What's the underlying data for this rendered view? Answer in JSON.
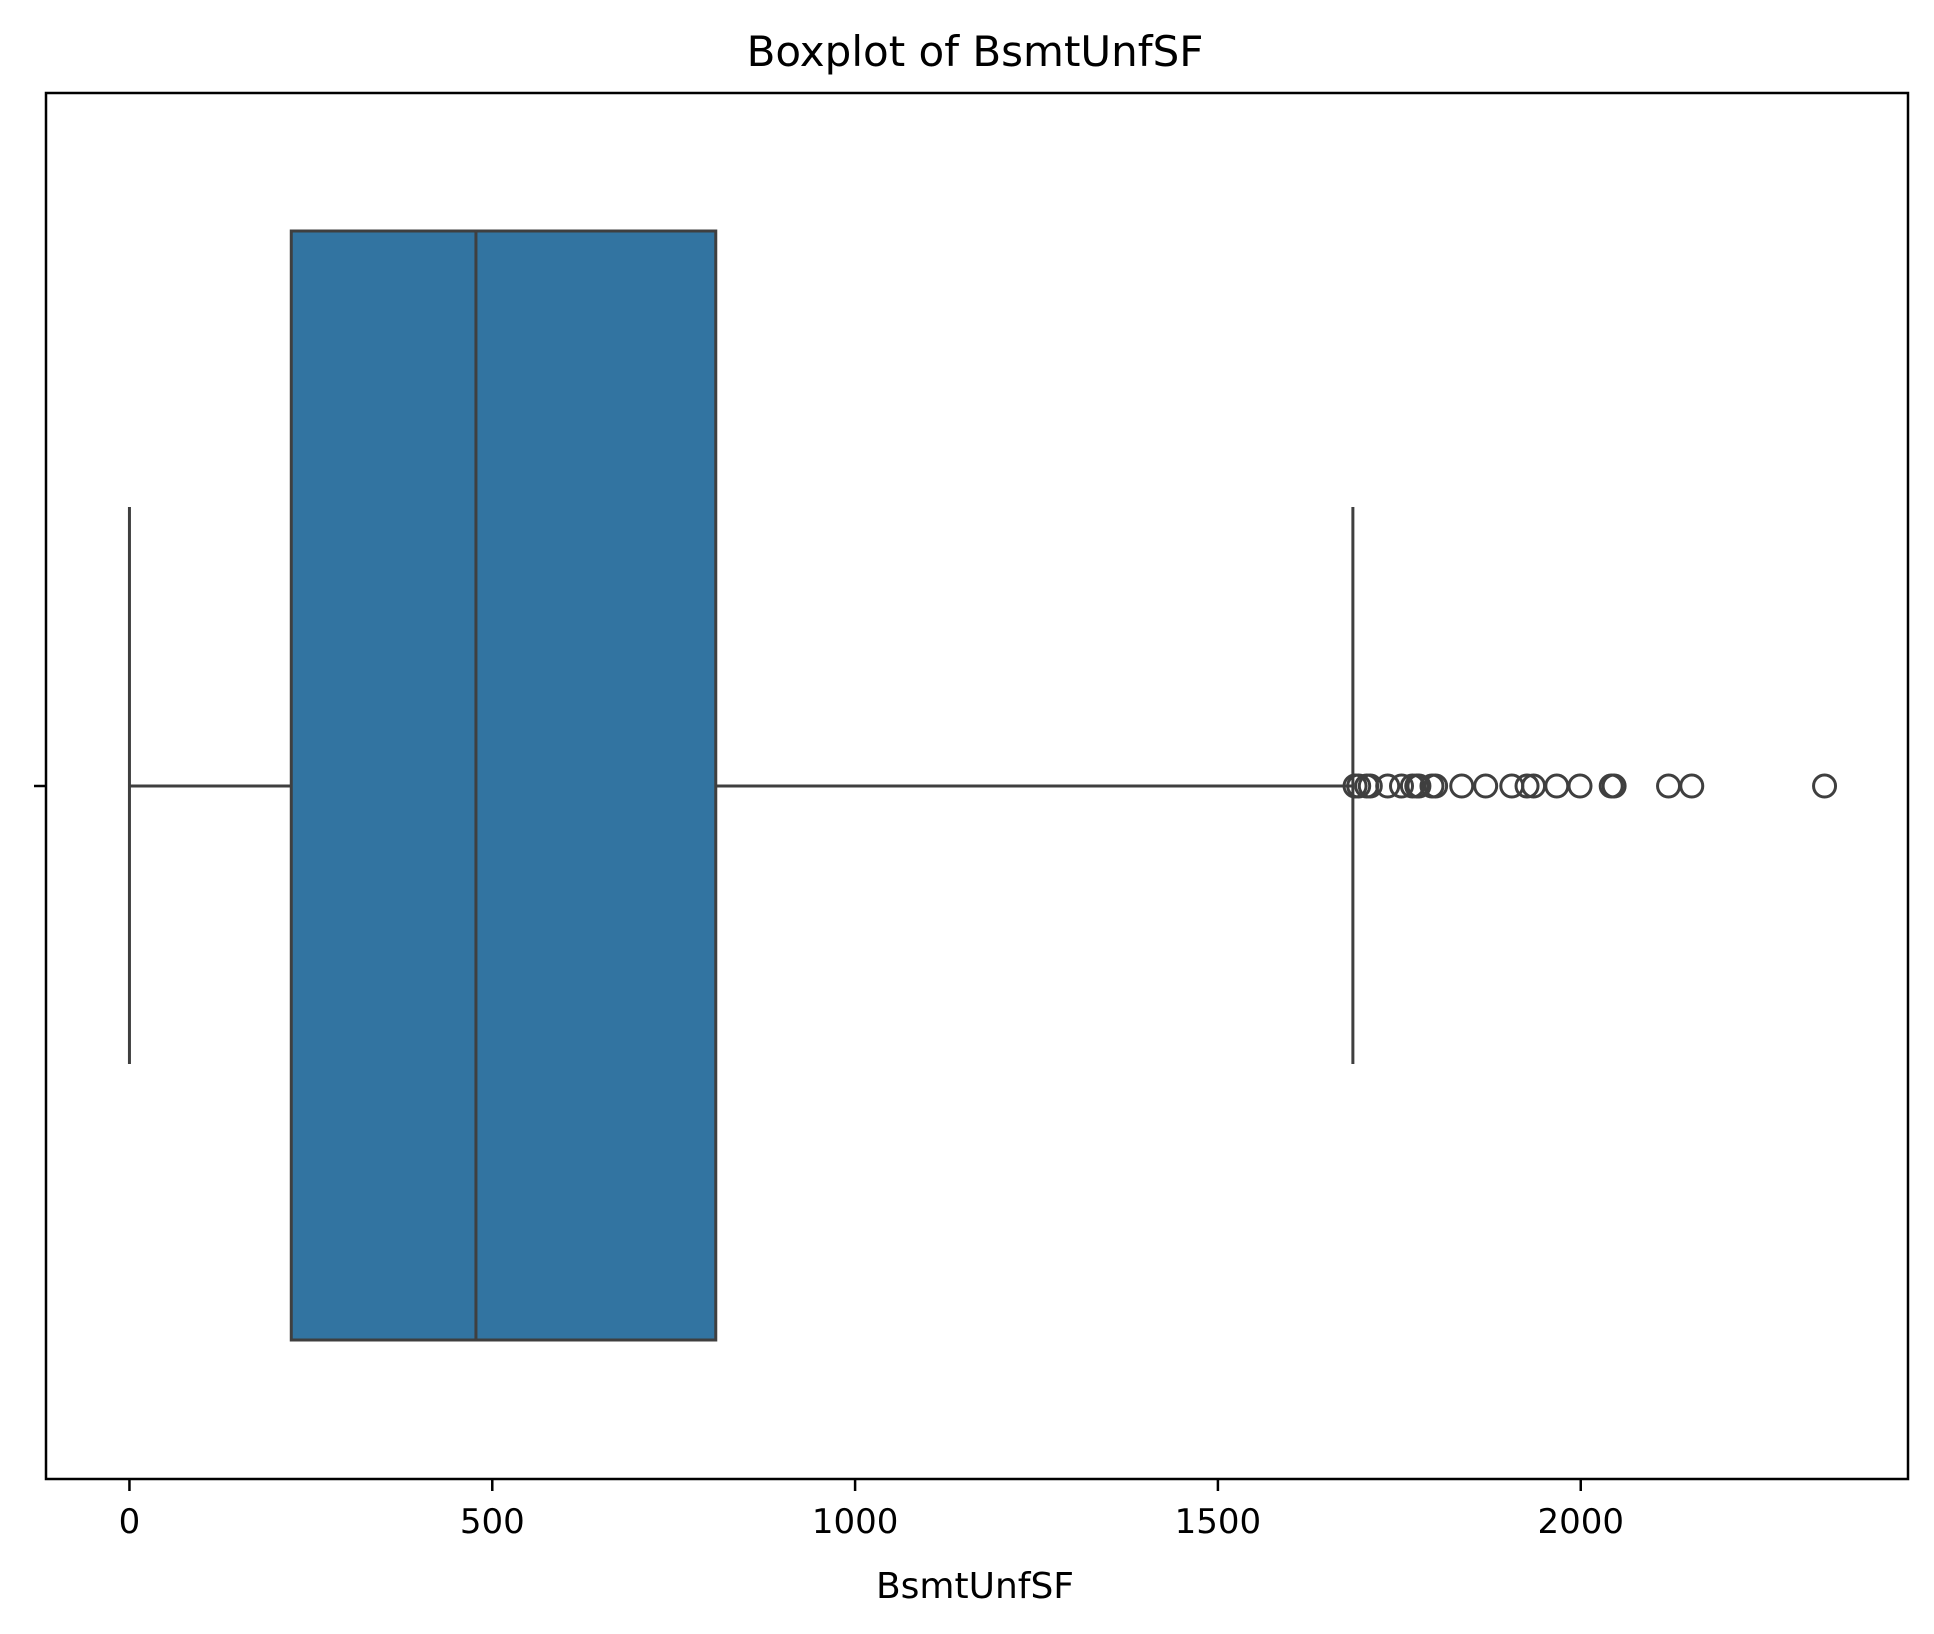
{
  "chart_data": {
    "type": "boxplot",
    "orientation": "horizontal",
    "title": "Boxplot of BsmtUnfSF",
    "xlabel": "BsmtUnfSF",
    "ylabel": "",
    "xlim": [
      -115,
      2451
    ],
    "xticks": [
      0,
      500,
      1000,
      1500,
      2000
    ],
    "xtick_labels": [
      "0",
      "500",
      "1000",
      "1500",
      "2000"
    ],
    "box": {
      "whisker_low": 0,
      "q1": 223,
      "median": 477.5,
      "q3": 808,
      "whisker_high": 1686
    },
    "outliers": [
      1689,
      1694,
      1705,
      1710,
      1734,
      1753,
      1768,
      1774,
      1777,
      1795,
      1800,
      1836,
      1869,
      1905,
      1926,
      1935,
      1967,
      1999,
      2042,
      2046,
      2121,
      2153,
      2336
    ],
    "colors": {
      "box_fill": "#3274a1",
      "line": "#3f3f3f",
      "frame": "#000000"
    },
    "grid": false
  }
}
